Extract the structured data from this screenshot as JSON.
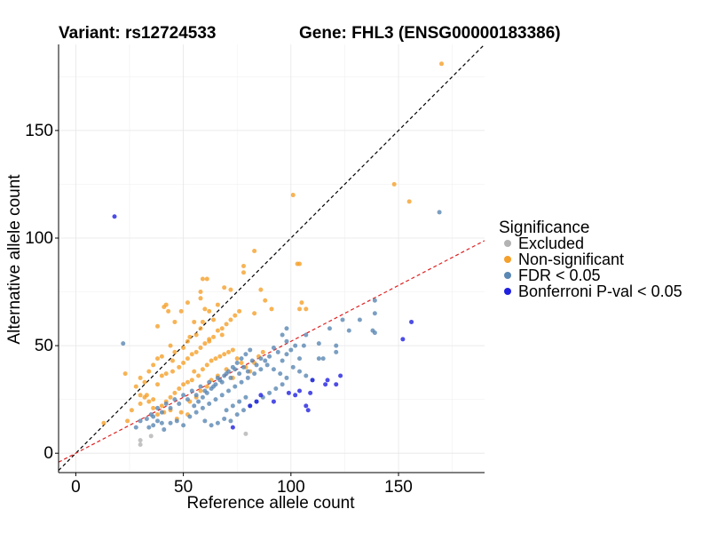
{
  "chart_data": {
    "type": "scatter",
    "title_left": "Variant: rs12724533",
    "title_right": "Gene: FHL3 (ENSG00000183386)",
    "xlabel": "Reference allele count",
    "ylabel": "Alternative allele count",
    "xlim": [
      -8,
      190
    ],
    "ylim": [
      -9,
      190
    ],
    "xticks": [
      0,
      50,
      100,
      150
    ],
    "yticks": [
      0,
      50,
      100,
      150
    ],
    "grid": true,
    "legend": {
      "title": "Significance",
      "position": "right",
      "entries": [
        {
          "label": "Excluded",
          "color": "#b3b3b3"
        },
        {
          "label": "Non-significant",
          "color": "#f5a02a"
        },
        {
          "label": "FDR < 0.05",
          "color": "#5a87b3"
        },
        {
          "label": "Bonferroni P-val < 0.05",
          "color": "#2020e0"
        }
      ]
    },
    "reference_lines": [
      {
        "slope": 1,
        "intercept": 0,
        "color": "#000000",
        "style": "dashed"
      },
      {
        "slope": 0.52,
        "intercept": 0,
        "color": "#e02020",
        "style": "dashed"
      }
    ],
    "series": [
      {
        "name": "Excluded",
        "color": "#b3b3b3",
        "points": [
          [
            30,
            6
          ],
          [
            30,
            4
          ],
          [
            35,
            8
          ],
          [
            79,
            9
          ]
        ]
      },
      {
        "name": "Non-significant",
        "color": "#f5a02a",
        "points": [
          [
            170,
            181
          ],
          [
            148,
            125
          ],
          [
            155,
            117
          ],
          [
            101,
            120
          ],
          [
            61,
            81
          ],
          [
            59,
            81
          ],
          [
            83,
            94
          ],
          [
            78,
            84
          ],
          [
            78,
            87
          ],
          [
            72,
            76
          ],
          [
            69,
            77
          ],
          [
            86,
            76
          ],
          [
            91,
            67
          ],
          [
            104,
            88
          ],
          [
            103,
            88
          ],
          [
            105,
            70
          ],
          [
            107,
            67
          ],
          [
            104,
            67
          ],
          [
            88,
            71
          ],
          [
            83,
            65
          ],
          [
            58,
            75
          ],
          [
            58,
            72
          ],
          [
            52,
            70
          ],
          [
            49,
            66
          ],
          [
            43,
            66
          ],
          [
            42,
            69
          ],
          [
            41,
            68
          ],
          [
            38,
            59
          ],
          [
            44,
            50
          ],
          [
            46,
            61
          ],
          [
            53,
            54
          ],
          [
            55,
            61
          ],
          [
            59,
            61
          ],
          [
            60,
            67
          ],
          [
            62,
            66
          ],
          [
            66,
            69
          ],
          [
            64,
            62
          ],
          [
            68,
            55
          ],
          [
            62,
            53
          ],
          [
            58,
            58
          ],
          [
            56,
            55
          ],
          [
            52,
            52
          ],
          [
            50,
            49
          ],
          [
            46,
            47
          ],
          [
            45,
            43
          ],
          [
            40,
            45
          ],
          [
            38,
            44
          ],
          [
            36,
            41
          ],
          [
            34,
            38
          ],
          [
            32,
            33
          ],
          [
            30,
            35
          ],
          [
            28,
            31
          ],
          [
            30,
            27
          ],
          [
            33,
            27
          ],
          [
            36,
            25
          ],
          [
            38,
            32
          ],
          [
            40,
            36
          ],
          [
            42,
            37
          ],
          [
            45,
            38
          ],
          [
            48,
            40
          ],
          [
            50,
            42
          ],
          [
            52,
            44
          ],
          [
            54,
            46
          ],
          [
            56,
            47
          ],
          [
            58,
            49
          ],
          [
            60,
            51
          ],
          [
            62,
            52
          ],
          [
            64,
            54
          ],
          [
            66,
            57
          ],
          [
            68,
            58
          ],
          [
            70,
            60
          ],
          [
            72,
            62
          ],
          [
            74,
            64
          ],
          [
            76,
            66
          ],
          [
            55,
            38
          ],
          [
            57,
            36
          ],
          [
            59,
            39
          ],
          [
            61,
            41
          ],
          [
            63,
            43
          ],
          [
            65,
            44
          ],
          [
            67,
            45
          ],
          [
            69,
            46
          ],
          [
            71,
            47
          ],
          [
            73,
            48
          ],
          [
            75,
            44
          ],
          [
            77,
            42
          ],
          [
            79,
            40
          ],
          [
            81,
            38
          ],
          [
            83,
            42
          ],
          [
            85,
            45
          ],
          [
            87,
            47
          ],
          [
            40,
            22
          ],
          [
            42,
            24
          ],
          [
            44,
            26
          ],
          [
            46,
            28
          ],
          [
            48,
            30
          ],
          [
            50,
            32
          ],
          [
            52,
            33
          ],
          [
            54,
            34
          ],
          [
            49,
            19
          ],
          [
            52,
            18
          ],
          [
            47,
            16
          ],
          [
            44,
            20
          ],
          [
            41,
            19
          ],
          [
            38,
            18
          ],
          [
            36,
            21
          ],
          [
            34,
            24
          ],
          [
            32,
            26
          ],
          [
            30,
            23
          ],
          [
            26,
            20
          ],
          [
            24,
            15
          ],
          [
            23,
            37
          ],
          [
            13,
            14
          ],
          [
            63,
            34
          ],
          [
            66,
            36
          ],
          [
            70,
            39
          ],
          [
            73,
            35
          ],
          [
            61,
            31
          ],
          [
            58,
            29
          ],
          [
            56,
            26
          ],
          [
            53,
            24
          ]
        ]
      },
      {
        "name": "FDR < 0.05",
        "color": "#5a87b3",
        "points": [
          [
            169,
            112
          ],
          [
            22,
            51
          ],
          [
            139,
            71
          ],
          [
            139,
            65
          ],
          [
            132,
            62
          ],
          [
            138,
            57
          ],
          [
            127,
            57
          ],
          [
            124,
            62
          ],
          [
            139,
            56
          ],
          [
            118,
            58
          ],
          [
            121,
            50
          ],
          [
            113,
            44
          ],
          [
            115,
            44
          ],
          [
            121,
            47
          ],
          [
            113,
            51
          ],
          [
            107,
            55
          ],
          [
            98,
            58
          ],
          [
            96,
            55
          ],
          [
            98,
            52
          ],
          [
            100,
            48
          ],
          [
            102,
            50
          ],
          [
            104,
            44
          ],
          [
            106,
            50
          ],
          [
            98,
            46
          ],
          [
            96,
            43
          ],
          [
            94,
            47
          ],
          [
            92,
            49
          ],
          [
            90,
            45
          ],
          [
            88,
            43
          ],
          [
            86,
            44
          ],
          [
            84,
            41
          ],
          [
            82,
            43
          ],
          [
            80,
            38
          ],
          [
            78,
            40
          ],
          [
            76,
            37
          ],
          [
            74,
            39
          ],
          [
            72,
            35
          ],
          [
            70,
            37
          ],
          [
            68,
            33
          ],
          [
            66,
            35
          ],
          [
            64,
            31
          ],
          [
            62,
            33
          ],
          [
            60,
            29
          ],
          [
            58,
            31
          ],
          [
            56,
            27
          ],
          [
            54,
            29
          ],
          [
            52,
            25
          ],
          [
            50,
            27
          ],
          [
            48,
            23
          ],
          [
            46,
            25
          ],
          [
            44,
            21
          ],
          [
            42,
            23
          ],
          [
            40,
            19
          ],
          [
            38,
            21
          ],
          [
            36,
            17
          ],
          [
            40,
            14
          ],
          [
            38,
            15
          ],
          [
            36,
            13
          ],
          [
            34,
            12
          ],
          [
            30,
            15
          ],
          [
            28,
            12
          ],
          [
            33,
            16
          ],
          [
            35,
            18
          ],
          [
            41,
            11
          ],
          [
            44,
            14
          ],
          [
            47,
            15
          ],
          [
            50,
            13
          ],
          [
            53,
            17
          ],
          [
            56,
            19
          ],
          [
            59,
            21
          ],
          [
            62,
            23
          ],
          [
            65,
            25
          ],
          [
            68,
            27
          ],
          [
            71,
            29
          ],
          [
            74,
            31
          ],
          [
            77,
            33
          ],
          [
            80,
            35
          ],
          [
            83,
            37
          ],
          [
            86,
            39
          ],
          [
            89,
            41
          ],
          [
            92,
            39
          ],
          [
            95,
            37
          ],
          [
            98,
            35
          ],
          [
            101,
            40
          ],
          [
            104,
            38
          ],
          [
            107,
            36
          ],
          [
            110,
            34
          ],
          [
            60,
            15
          ],
          [
            63,
            13
          ],
          [
            66,
            14
          ],
          [
            69,
            16
          ],
          [
            72,
            15
          ],
          [
            75,
            18
          ],
          [
            78,
            20
          ],
          [
            81,
            22
          ],
          [
            84,
            24
          ],
          [
            87,
            26
          ],
          [
            90,
            28
          ],
          [
            93,
            30
          ],
          [
            96,
            32
          ],
          [
            55,
            22
          ],
          [
            57,
            24
          ],
          [
            59,
            26
          ],
          [
            61,
            28
          ],
          [
            63,
            30
          ],
          [
            65,
            32
          ],
          [
            67,
            34
          ],
          [
            69,
            36
          ],
          [
            71,
            38
          ],
          [
            73,
            40
          ],
          [
            75,
            42
          ],
          [
            77,
            44
          ],
          [
            79,
            46
          ],
          [
            81,
            48
          ],
          [
            70,
            20
          ],
          [
            73,
            22
          ],
          [
            76,
            24
          ],
          [
            79,
            26
          ]
        ]
      },
      {
        "name": "Bonferroni P-val < 0.05",
        "color": "#2020e0",
        "points": [
          [
            18,
            110
          ],
          [
            156,
            61
          ],
          [
            152,
            53
          ],
          [
            123,
            36
          ],
          [
            117,
            34
          ],
          [
            121,
            32
          ],
          [
            116,
            32
          ],
          [
            110,
            34
          ],
          [
            109,
            28
          ],
          [
            104,
            29
          ],
          [
            102,
            27
          ],
          [
            99,
            28
          ],
          [
            107,
            22
          ],
          [
            108,
            20
          ],
          [
            92,
            24
          ],
          [
            86,
            27
          ],
          [
            84,
            24
          ],
          [
            81,
            22
          ],
          [
            73,
            12
          ]
        ]
      }
    ]
  }
}
